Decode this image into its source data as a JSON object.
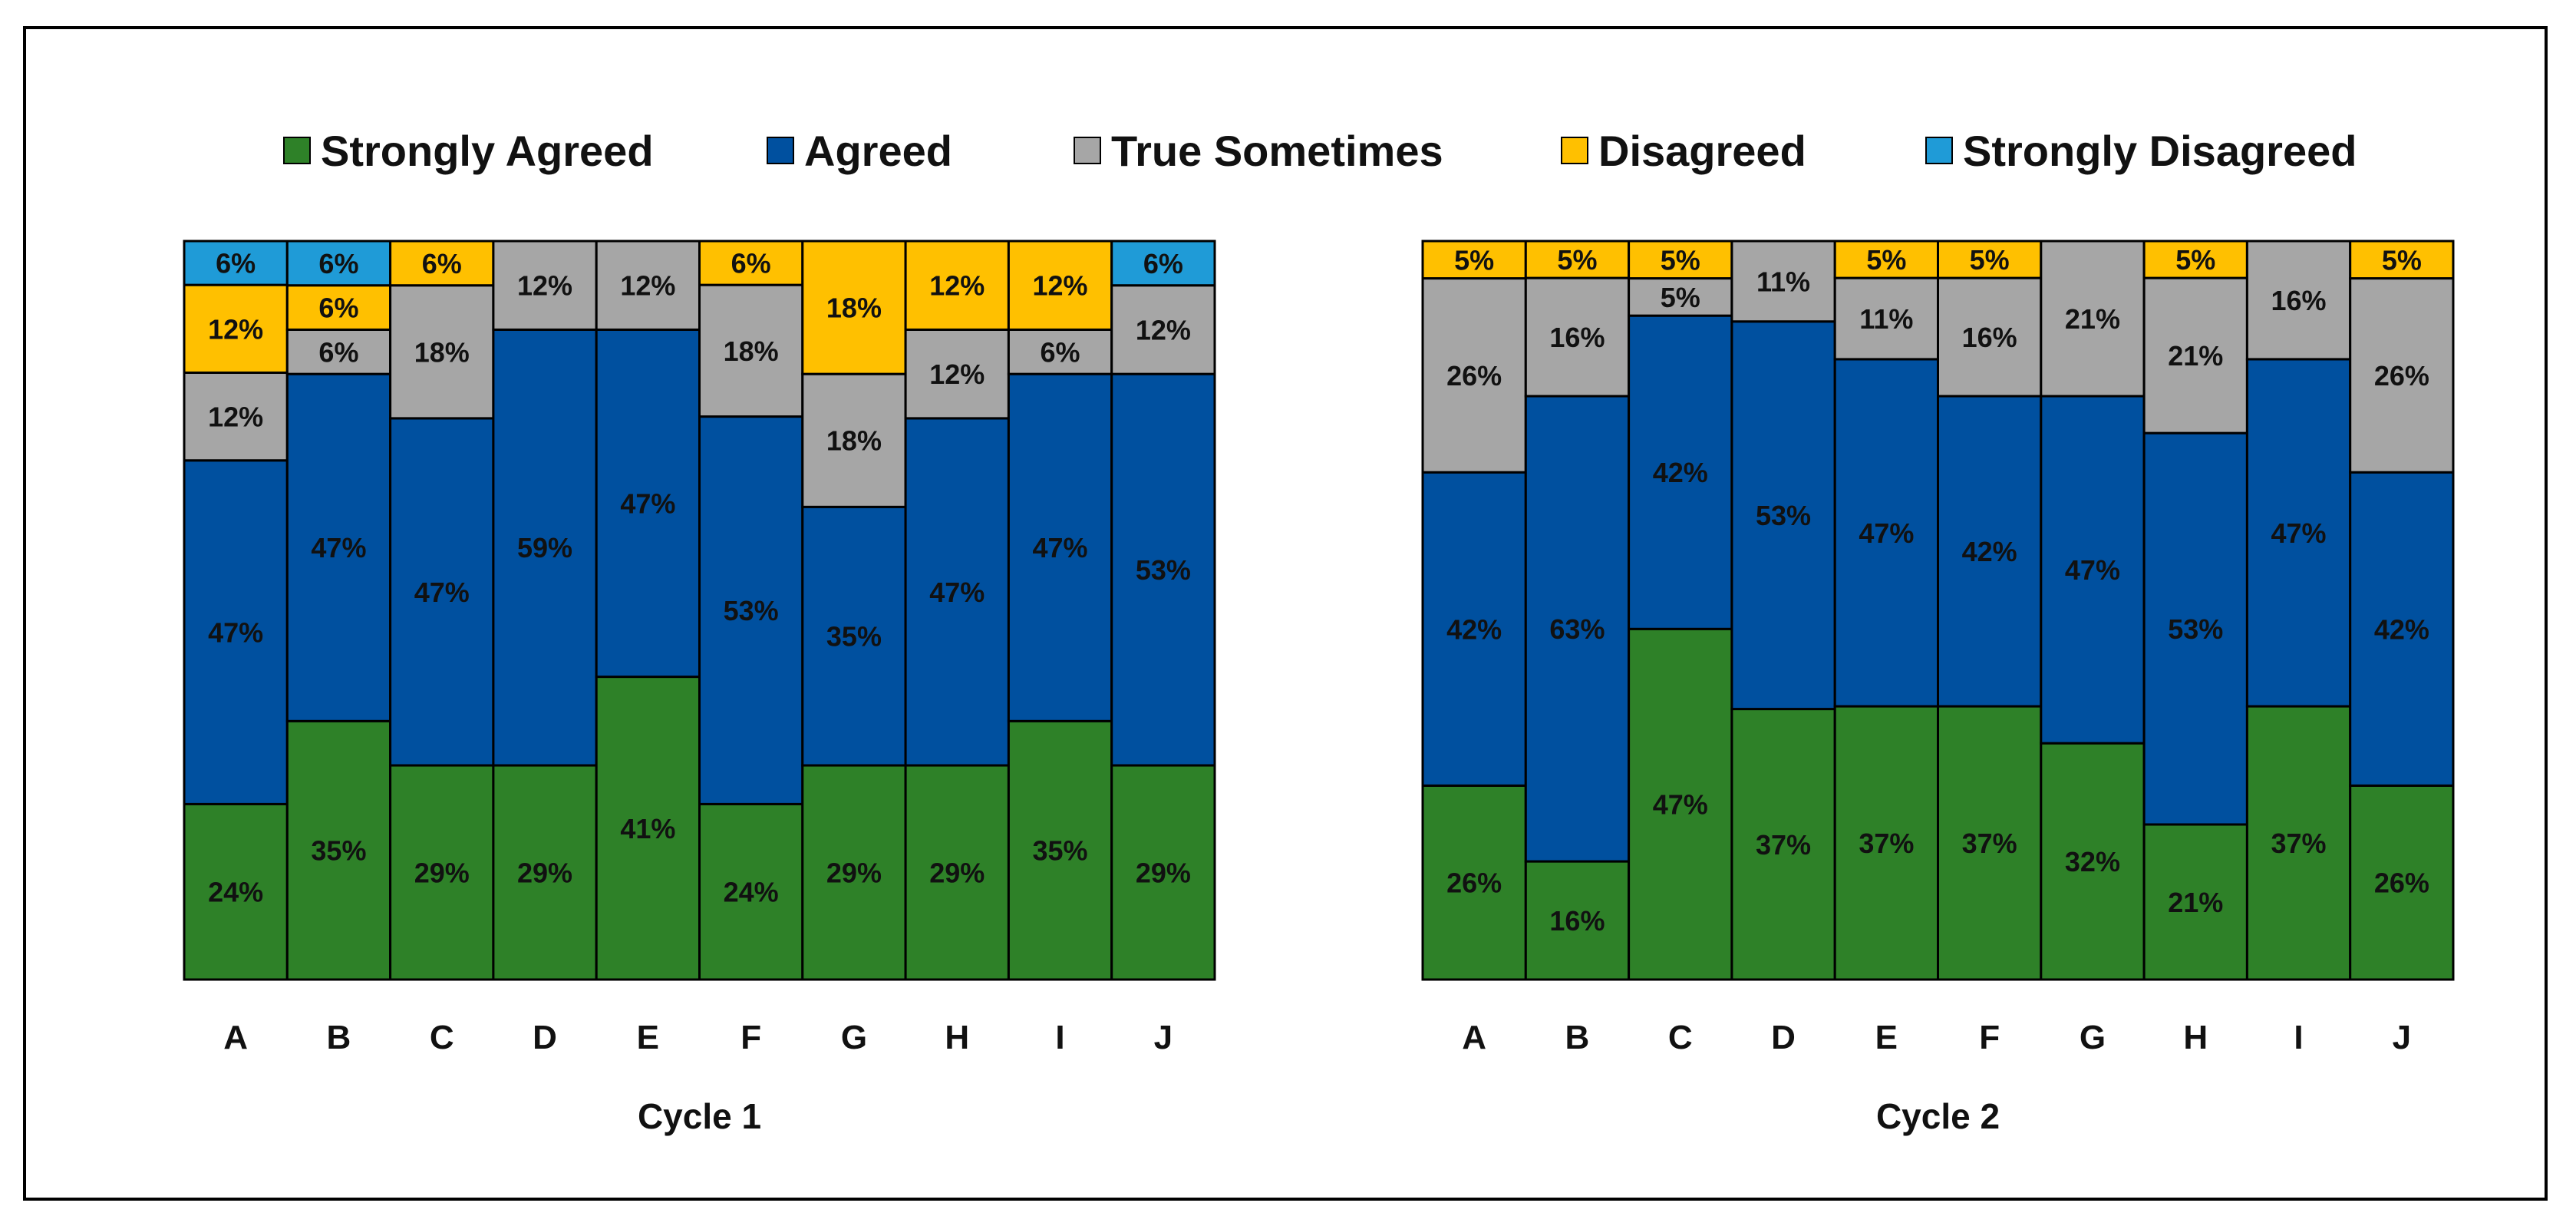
{
  "chart_data": [
    {
      "type": "bar",
      "stacked": true,
      "normalized": true,
      "title": "Cycle 1",
      "categories": [
        "A",
        "B",
        "C",
        "D",
        "E",
        "F",
        "G",
        "H",
        "I",
        "J"
      ],
      "series": [
        {
          "name": "Strongly Agreed",
          "values": [
            24,
            35,
            29,
            29,
            41,
            24,
            29,
            29,
            35,
            29
          ]
        },
        {
          "name": "Agreed",
          "values": [
            47,
            47,
            47,
            59,
            47,
            53,
            35,
            47,
            47,
            53
          ]
        },
        {
          "name": "True Sometimes",
          "values": [
            12,
            6,
            18,
            12,
            12,
            18,
            18,
            12,
            6,
            12
          ]
        },
        {
          "name": "Disagreed",
          "values": [
            12,
            6,
            6,
            0,
            0,
            6,
            18,
            12,
            12,
            0
          ]
        },
        {
          "name": "Strongly Disagreed",
          "values": [
            6,
            6,
            0,
            0,
            0,
            0,
            0,
            0,
            0,
            6
          ]
        }
      ],
      "value_suffix": "%",
      "ylim": [
        0,
        100
      ]
    },
    {
      "type": "bar",
      "stacked": true,
      "normalized": true,
      "title": "Cycle 2",
      "categories": [
        "A",
        "B",
        "C",
        "D",
        "E",
        "F",
        "G",
        "H",
        "I",
        "J"
      ],
      "series": [
        {
          "name": "Strongly Agreed",
          "values": [
            26,
            16,
            47,
            37,
            37,
            37,
            32,
            21,
            37,
            26
          ]
        },
        {
          "name": "Agreed",
          "values": [
            42,
            63,
            42,
            53,
            47,
            42,
            47,
            53,
            47,
            42
          ]
        },
        {
          "name": "True Sometimes",
          "values": [
            26,
            16,
            5,
            11,
            11,
            16,
            21,
            21,
            16,
            26
          ]
        },
        {
          "name": "Disagreed",
          "values": [
            5,
            5,
            5,
            0,
            5,
            5,
            0,
            5,
            0,
            5
          ]
        },
        {
          "name": "Strongly Disagreed",
          "values": [
            0,
            0,
            0,
            0,
            0,
            0,
            0,
            0,
            0,
            0
          ]
        }
      ],
      "value_suffix": "%",
      "ylim": [
        0,
        100
      ]
    }
  ],
  "legend": {
    "placement": "top-center",
    "items": [
      {
        "name": "Strongly Agreed",
        "color": "#2E8128"
      },
      {
        "name": "Agreed",
        "color": "#00509F"
      },
      {
        "name": "True Sometimes",
        "color": "#A6A6A6"
      },
      {
        "name": "Disagreed",
        "color": "#FFC000"
      },
      {
        "name": "Strongly Disagreed",
        "color": "#1F9BD7"
      }
    ]
  }
}
